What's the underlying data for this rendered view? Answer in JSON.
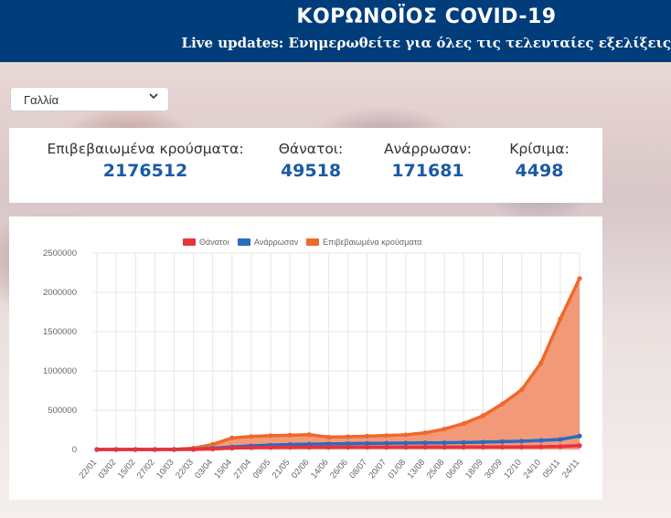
{
  "header": {
    "title": "ΚΟΡΩΝΟΪΟΣ COVID-19",
    "subtitle": "Live updates: Ενημερωθείτε για όλες τις τελευταίες εξελίξεις"
  },
  "country_select": {
    "value": "Γαλλία"
  },
  "stats": [
    {
      "label": "Επιβεβαιωμένα κρούσματα:",
      "value": "2176512"
    },
    {
      "label": "Θάνατοι:",
      "value": "49518"
    },
    {
      "label": "Ανάρρωσαν:",
      "value": "171681"
    },
    {
      "label": "Κρίσιμα:",
      "value": "4498"
    }
  ],
  "chart_data": {
    "type": "area",
    "legend_position": "top",
    "grid": true,
    "ylim": [
      0,
      2500000
    ],
    "yticks": [
      "0",
      "500000",
      "1000000",
      "1500000",
      "2000000",
      "2500000"
    ],
    "x_ticks": [
      "22/01",
      "03/02",
      "15/02",
      "27/02",
      "10/03",
      "22/03",
      "03/04",
      "15/04",
      "27/04",
      "09/05",
      "21/05",
      "02/06",
      "14/06",
      "26/06",
      "08/07",
      "20/07",
      "01/08",
      "13/08",
      "25/08",
      "06/09",
      "18/09",
      "30/09",
      "12/10",
      "24/10",
      "05/11",
      "24/11"
    ],
    "series": [
      {
        "name": "Θάνατοι",
        "color": "#e8323c",
        "points": [
          [
            "22/01",
            0
          ],
          [
            "03/02",
            0
          ],
          [
            "15/02",
            1
          ],
          [
            "27/02",
            2
          ],
          [
            "10/03",
            33
          ],
          [
            "22/03",
            674
          ],
          [
            "03/04",
            6507
          ],
          [
            "15/04",
            17188
          ],
          [
            "27/04",
            23327
          ],
          [
            "09/05",
            26380
          ],
          [
            "21/05",
            28215
          ],
          [
            "02/06",
            28940
          ],
          [
            "14/06",
            29400
          ],
          [
            "26/06",
            29800
          ],
          [
            "08/07",
            30000
          ],
          [
            "20/07",
            30200
          ],
          [
            "01/08",
            30300
          ],
          [
            "13/08",
            30400
          ],
          [
            "25/08",
            30600
          ],
          [
            "06/09",
            30800
          ],
          [
            "18/09",
            31200
          ],
          [
            "30/09",
            31900
          ],
          [
            "12/10",
            33000
          ],
          [
            "24/10",
            34600
          ],
          [
            "05/11",
            39000
          ],
          [
            "24/11",
            49518
          ]
        ]
      },
      {
        "name": "Ανάρρωσαν",
        "color": "#2a6bc2",
        "points": [
          [
            "22/01",
            0
          ],
          [
            "03/02",
            0
          ],
          [
            "15/02",
            4
          ],
          [
            "27/02",
            12
          ],
          [
            "10/03",
            12
          ],
          [
            "22/03",
            2200
          ],
          [
            "03/04",
            15400
          ],
          [
            "15/04",
            32000
          ],
          [
            "27/04",
            46000
          ],
          [
            "09/05",
            56000
          ],
          [
            "21/05",
            63000
          ],
          [
            "02/06",
            68000
          ],
          [
            "14/06",
            72000
          ],
          [
            "26/06",
            75000
          ],
          [
            "08/07",
            77500
          ],
          [
            "20/07",
            80000
          ],
          [
            "01/08",
            82000
          ],
          [
            "13/08",
            84000
          ],
          [
            "25/08",
            86000
          ],
          [
            "06/09",
            89000
          ],
          [
            "18/09",
            94000
          ],
          [
            "30/09",
            100000
          ],
          [
            "12/10",
            106000
          ],
          [
            "24/10",
            115000
          ],
          [
            "05/11",
            128000
          ],
          [
            "24/11",
            171681
          ]
        ]
      },
      {
        "name": "Επιβεβαιωμένα κρούσματα",
        "color": "#f0682a",
        "fill": "#f29a78",
        "points": [
          [
            "22/01",
            0
          ],
          [
            "03/02",
            6
          ],
          [
            "15/02",
            12
          ],
          [
            "27/02",
            38
          ],
          [
            "10/03",
            1784
          ],
          [
            "22/03",
            16018
          ],
          [
            "03/04",
            65202
          ],
          [
            "15/04",
            147091
          ],
          [
            "27/04",
            165842
          ],
          [
            "09/05",
            176658
          ],
          [
            "21/05",
            181700
          ],
          [
            "02/06",
            189000
          ],
          [
            "14/06",
            157000
          ],
          [
            "26/06",
            162000
          ],
          [
            "08/07",
            170000
          ],
          [
            "20/07",
            178000
          ],
          [
            "01/08",
            187000
          ],
          [
            "13/08",
            212000
          ],
          [
            "25/08",
            260000
          ],
          [
            "06/09",
            330000
          ],
          [
            "18/09",
            430000
          ],
          [
            "30/09",
            580000
          ],
          [
            "12/10",
            760000
          ],
          [
            "24/10",
            1100000
          ],
          [
            "05/11",
            1660000
          ],
          [
            "24/11",
            2176512
          ]
        ]
      }
    ]
  }
}
